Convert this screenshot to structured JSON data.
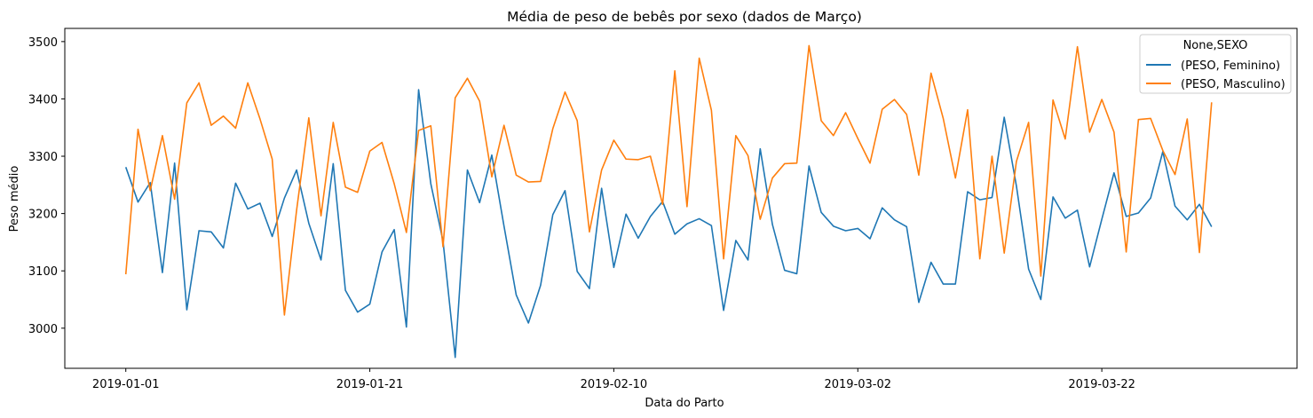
{
  "chart_data": {
    "type": "line",
    "title": "Média de peso de bebês por sexo (dados de Março)",
    "xlabel": "Data do Parto",
    "ylabel": "Peso médio",
    "x_start": "2019-01-01",
    "x_tick_labels": [
      "2019-01-01",
      "2019-01-21",
      "2019-02-10",
      "2019-03-02",
      "2019-03-22"
    ],
    "y_ticks": [
      3000,
      3100,
      3200,
      3300,
      3400,
      3500
    ],
    "xlim": [
      "2018-12-27",
      "2019-04-07"
    ],
    "ylim": [
      2930,
      3523
    ],
    "grid": false,
    "legend": {
      "title": "None,SEXO",
      "placement": "top-right"
    },
    "series": [
      {
        "name": "(PESO, Feminino)",
        "color": "#1f77b4",
        "values": [
          3281,
          3220,
          3254,
          3097,
          3288,
          3032,
          3170,
          3168,
          3140,
          3253,
          3208,
          3218,
          3160,
          3227,
          3276,
          3183,
          3119,
          3287,
          3066,
          3028,
          3042,
          3133,
          3172,
          3002,
          3416,
          3252,
          3152,
          2949,
          3276,
          3219,
          3302,
          3178,
          3058,
          3009,
          3075,
          3198,
          3240,
          3099,
          3069,
          3244,
          3106,
          3199,
          3157,
          3195,
          3221,
          3164,
          3182,
          3191,
          3179,
          3031,
          3153,
          3119,
          3313,
          3181,
          3101,
          3095,
          3283,
          3202,
          3178,
          3170,
          3174,
          3156,
          3210,
          3189,
          3177,
          3045,
          3115,
          3077,
          3077,
          3238,
          3224,
          3228,
          3368,
          3248,
          3103,
          3050,
          3229,
          3192,
          3206,
          3107,
          3190,
          3271,
          3195,
          3201,
          3227,
          3308,
          3213,
          3189,
          3216,
          3177
        ]
      },
      {
        "name": "(PESO, Masculino)",
        "color": "#ff7f0e",
        "values": [
          3094,
          3347,
          3240,
          3336,
          3225,
          3393,
          3428,
          3354,
          3370,
          3349,
          3428,
          3365,
          3295,
          3023,
          3206,
          3367,
          3196,
          3359,
          3246,
          3237,
          3309,
          3324,
          3252,
          3167,
          3345,
          3353,
          3142,
          3402,
          3436,
          3396,
          3264,
          3354,
          3267,
          3255,
          3256,
          3348,
          3412,
          3362,
          3168,
          3276,
          3328,
          3295,
          3294,
          3300,
          3216,
          3449,
          3212,
          3471,
          3380,
          3121,
          3336,
          3301,
          3190,
          3262,
          3287,
          3288,
          3493,
          3362,
          3336,
          3376,
          3331,
          3288,
          3382,
          3399,
          3373,
          3267,
          3445,
          3366,
          3262,
          3381,
          3121,
          3300,
          3131,
          3291,
          3359,
          3091,
          3398,
          3330,
          3491,
          3342,
          3399,
          3342,
          3133,
          3364,
          3366,
          3310,
          3268,
          3365,
          3132,
          3394
        ]
      }
    ]
  }
}
